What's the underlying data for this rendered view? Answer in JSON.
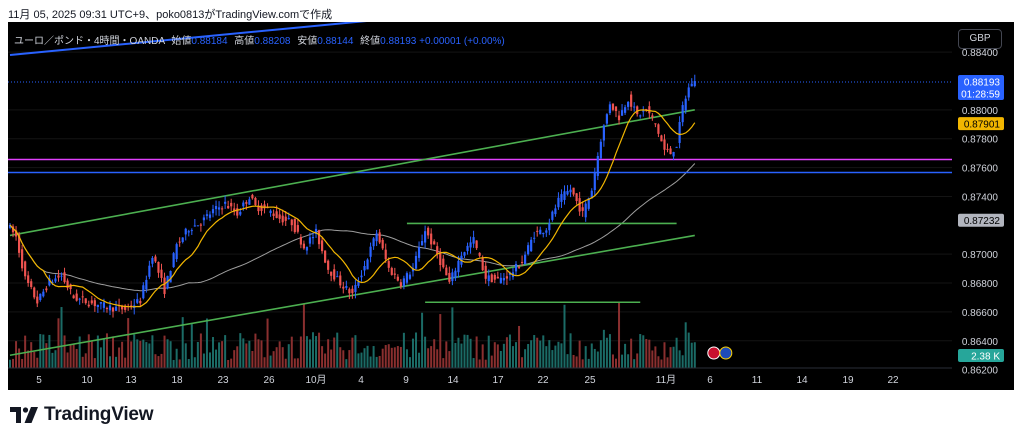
{
  "caption": "11月 05, 2025 09:31 UTC+9、poko0813がTradingView.comで作成",
  "brand": {
    "name": "TradingView"
  },
  "legend": {
    "symbol": "ユーロ／ポンド・4時間・OANDA",
    "open_label": "始値",
    "open": "0.88184",
    "high_label": "高値",
    "high": "0.88208",
    "low_label": "安値",
    "low": "0.88144",
    "close_label": "終値",
    "close": "0.88193",
    "change": "+0.00001 (+0.00%)"
  },
  "currency_button": "GBP",
  "colors": {
    "background": "#000000",
    "up": "#2962ff",
    "down": "#ef5350",
    "ma_fast": "#f2b600",
    "ma_slow": "#9e9e9e",
    "trend_channel": "#4caf50",
    "long_trend": "#2962ff",
    "magenta_line": "#e040fb",
    "blue_level": "#2962ff",
    "range_box": "#4caf50"
  },
  "icons": [
    "flag-uk-icon",
    "flag-eu-icon"
  ],
  "chart_data": {
    "type": "candlestick",
    "title": "ユーロ／ポンド・4時間・OANDA",
    "ylim": [
      0.8626,
      0.8856
    ],
    "price_ticks": [
      "0.88400",
      "0.88000",
      "0.87800",
      "0.87600",
      "0.87400",
      "0.87000",
      "0.86800",
      "0.86600",
      "0.86400",
      "0.86200"
    ],
    "x_ticks": [
      "5",
      "10",
      "13",
      "18",
      "23",
      "26",
      "10月",
      "4",
      "9",
      "14",
      "17",
      "22",
      "25",
      "11月",
      "6",
      "11",
      "14",
      "19",
      "22"
    ],
    "last_price": {
      "value": "0.88193",
      "countdown": "01:28:59",
      "color": "#2962ff"
    },
    "ma_fast_tag": {
      "value": "0.87901",
      "color": "#f2b600"
    },
    "ma_slow_tag": {
      "value": "0.87232",
      "color": "#b2b5be"
    },
    "volume_tag": {
      "value": "2.38 K",
      "color": "#26a69a"
    },
    "path_points": [
      {
        "i": 0,
        "p": 0.8721
      },
      {
        "i": 3,
        "p": 0.8712
      },
      {
        "i": 6,
        "p": 0.8683
      },
      {
        "i": 10,
        "p": 0.8667
      },
      {
        "i": 14,
        "p": 0.8681
      },
      {
        "i": 18,
        "p": 0.8685
      },
      {
        "i": 22,
        "p": 0.867
      },
      {
        "i": 28,
        "p": 0.8666
      },
      {
        "i": 34,
        "p": 0.8663
      },
      {
        "i": 39,
        "p": 0.8662
      },
      {
        "i": 44,
        "p": 0.8668
      },
      {
        "i": 48,
        "p": 0.87
      },
      {
        "i": 52,
        "p": 0.8675
      },
      {
        "i": 56,
        "p": 0.8706
      },
      {
        "i": 60,
        "p": 0.8718
      },
      {
        "i": 64,
        "p": 0.8722
      },
      {
        "i": 68,
        "p": 0.873
      },
      {
        "i": 72,
        "p": 0.8735
      },
      {
        "i": 76,
        "p": 0.8728
      },
      {
        "i": 80,
        "p": 0.874
      },
      {
        "i": 82,
        "p": 0.8733
      },
      {
        "i": 86,
        "p": 0.8731
      },
      {
        "i": 90,
        "p": 0.8725
      },
      {
        "i": 94,
        "p": 0.8722
      },
      {
        "i": 98,
        "p": 0.8705
      },
      {
        "i": 102,
        "p": 0.8715
      },
      {
        "i": 106,
        "p": 0.869
      },
      {
        "i": 110,
        "p": 0.868
      },
      {
        "i": 114,
        "p": 0.8672
      },
      {
        "i": 118,
        "p": 0.8692
      },
      {
        "i": 122,
        "p": 0.8715
      },
      {
        "i": 126,
        "p": 0.869
      },
      {
        "i": 130,
        "p": 0.868
      },
      {
        "i": 134,
        "p": 0.869
      },
      {
        "i": 138,
        "p": 0.8717
      },
      {
        "i": 142,
        "p": 0.87
      },
      {
        "i": 146,
        "p": 0.868
      },
      {
        "i": 150,
        "p": 0.87
      },
      {
        "i": 154,
        "p": 0.871
      },
      {
        "i": 158,
        "p": 0.8684
      },
      {
        "i": 162,
        "p": 0.8682
      },
      {
        "i": 166,
        "p": 0.8686
      },
      {
        "i": 170,
        "p": 0.8695
      },
      {
        "i": 174,
        "p": 0.8714
      },
      {
        "i": 178,
        "p": 0.8718
      },
      {
        "i": 182,
        "p": 0.8737
      },
      {
        "i": 186,
        "p": 0.8745
      },
      {
        "i": 190,
        "p": 0.8728
      },
      {
        "i": 193,
        "p": 0.8745
      },
      {
        "i": 196,
        "p": 0.878
      },
      {
        "i": 199,
        "p": 0.8805
      },
      {
        "i": 202,
        "p": 0.8795
      },
      {
        "i": 205,
        "p": 0.8808
      },
      {
        "i": 208,
        "p": 0.8796
      },
      {
        "i": 211,
        "p": 0.88
      },
      {
        "i": 214,
        "p": 0.879
      },
      {
        "i": 217,
        "p": 0.8772
      },
      {
        "i": 219,
        "p": 0.877
      },
      {
        "i": 221,
        "p": 0.8776
      },
      {
        "i": 223,
        "p": 0.8802
      },
      {
        "i": 225,
        "p": 0.8815
      },
      {
        "i": 226,
        "p": 0.8819
      }
    ],
    "candle_count": 227
  }
}
